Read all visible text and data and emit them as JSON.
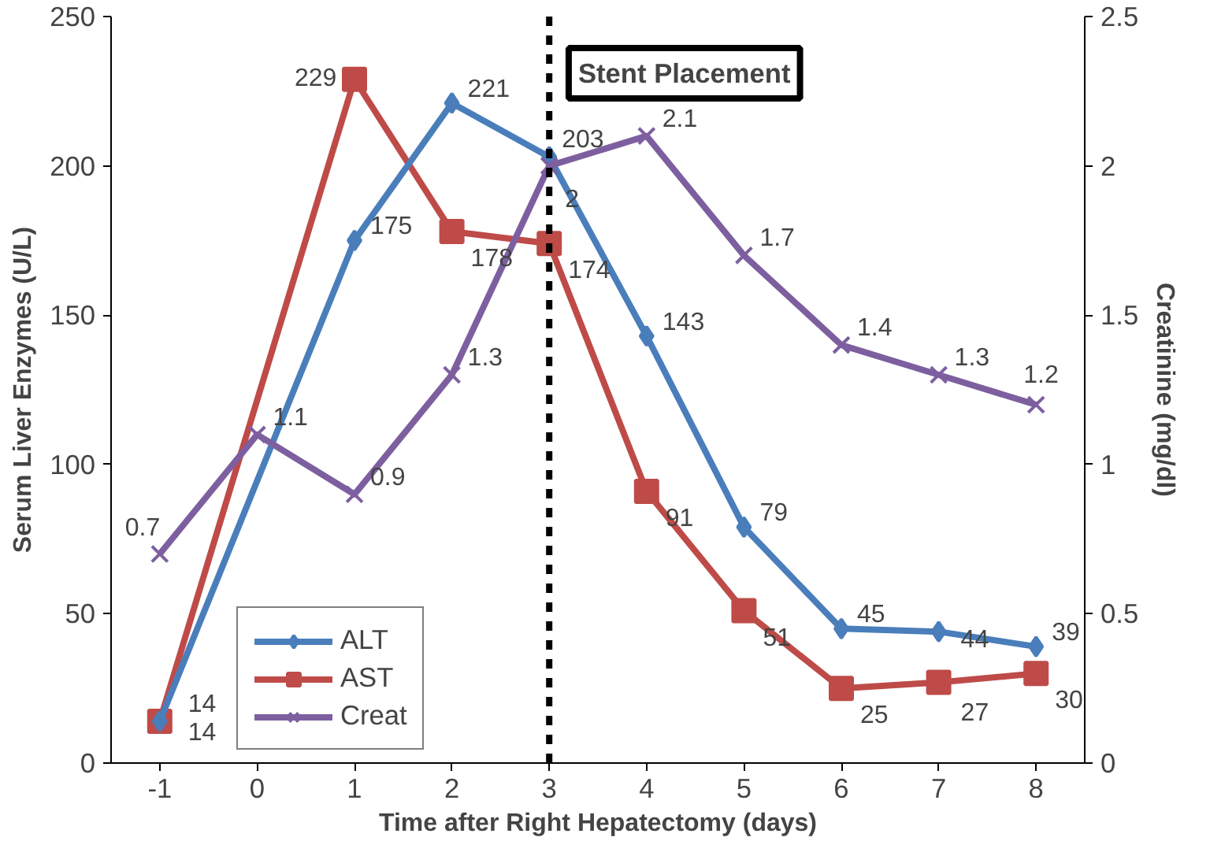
{
  "chart_data": {
    "type": "line",
    "xlabel": "Time after Right Hepatectomy (days)",
    "ylabel": "Serum Liver Enzymes (U/L)",
    "y2label": "Creatinine (mg/dl)",
    "categories": [
      "-1",
      "0",
      "1",
      "2",
      "3",
      "4",
      "5",
      "6",
      "7",
      "8"
    ],
    "series": [
      {
        "name": "ALT",
        "color": "#4a7ebb",
        "marker": "diamond",
        "values": [
          14,
          null,
          175,
          221,
          203,
          143,
          79,
          45,
          44,
          39
        ]
      },
      {
        "name": "AST",
        "color": "#be4b48",
        "marker": "square",
        "values": [
          14,
          null,
          229,
          178,
          174,
          91,
          51,
          25,
          27,
          30
        ]
      },
      {
        "name": "Creat",
        "color": "#7d5fa0",
        "marker": "cross",
        "axis": "y2",
        "values": [
          0.7,
          1.1,
          0.9,
          1.3,
          2,
          2.1,
          1.7,
          1.4,
          1.3,
          1.2
        ]
      }
    ],
    "ylim": [
      0,
      250
    ],
    "yticks": [
      0,
      50,
      100,
      150,
      200,
      250
    ],
    "y2lim": [
      0,
      2.5
    ],
    "y2ticks": [
      0,
      0.5,
      1,
      1.5,
      2,
      2.5
    ],
    "ref_lines": [
      {
        "axis": "x",
        "value": "3",
        "label": "Stent Placement",
        "color": "#000000",
        "line_style": "dashed"
      }
    ],
    "data_labels": true,
    "legend": "bottom left",
    "grid": false
  }
}
